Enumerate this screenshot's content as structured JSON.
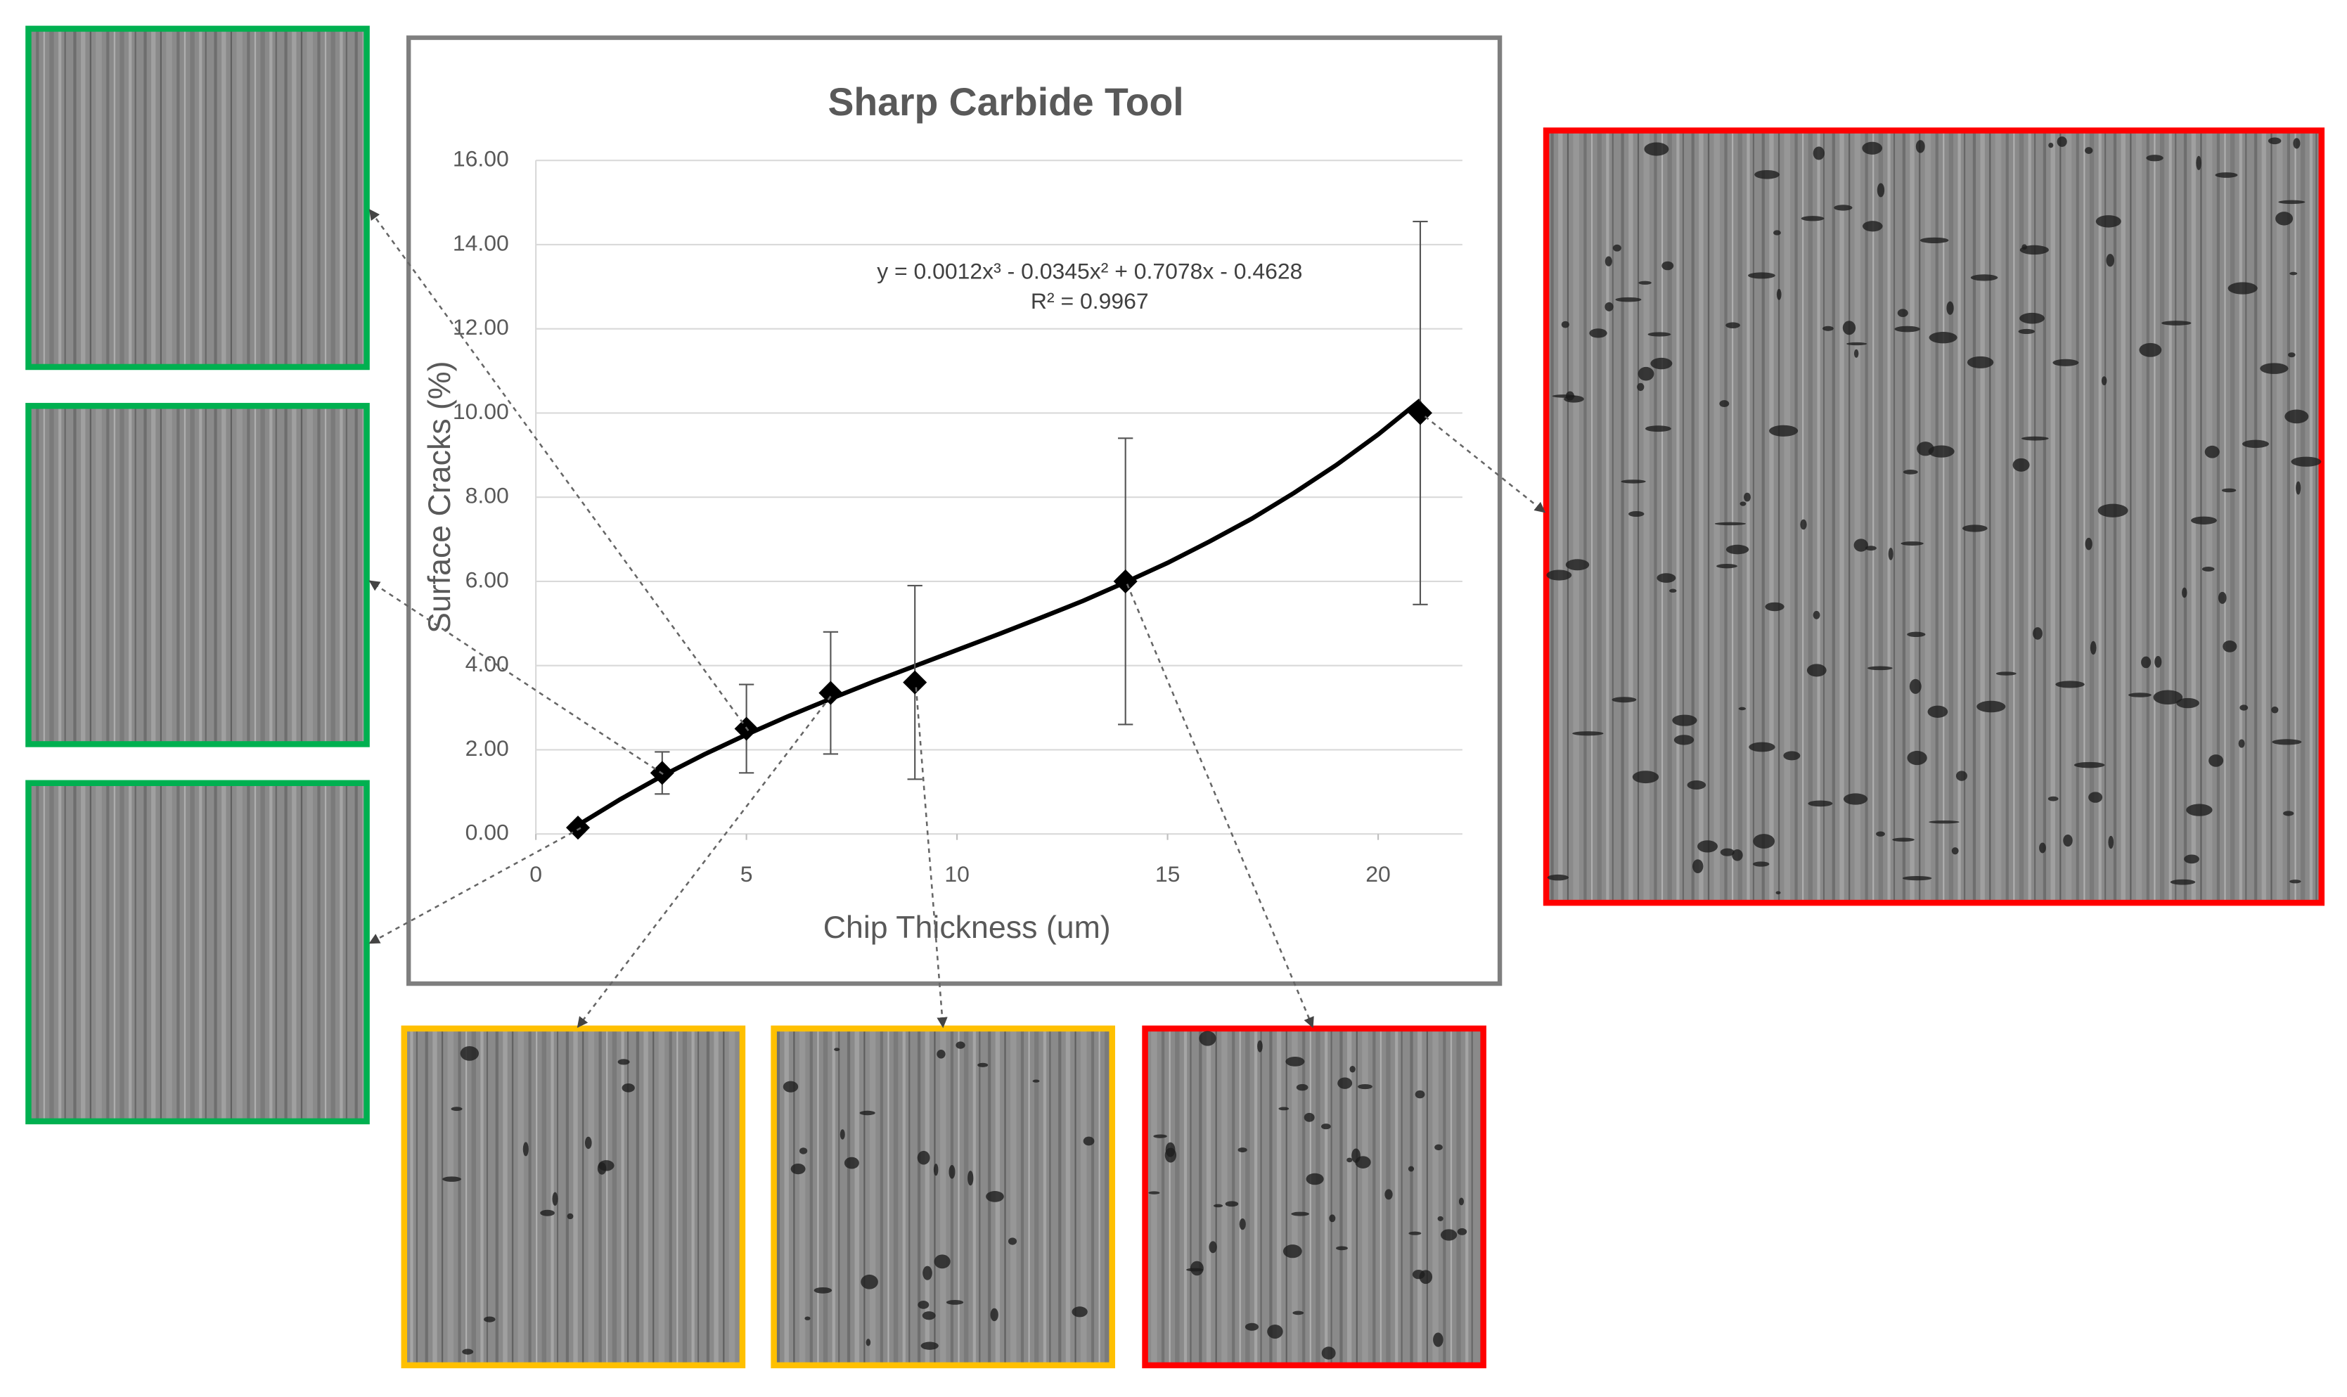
{
  "chart_data": {
    "type": "scatter",
    "title": "Sharp Carbide Tool",
    "x_label": "Chip Thickness (um)",
    "y_label": "Surface Cracks (%)",
    "color": "#000000",
    "x": [
      1,
      3,
      5,
      7,
      9,
      14,
      21
    ],
    "values": [
      0.15,
      1.45,
      2.5,
      3.35,
      3.6,
      6.0,
      10.0
    ],
    "errors": [
      0.1,
      0.5,
      1.05,
      1.45,
      2.3,
      3.4,
      4.55
    ],
    "trend_x": [
      1,
      2,
      3,
      4,
      5,
      6,
      7,
      8,
      9,
      10,
      11,
      12,
      13,
      14,
      15,
      16,
      17,
      18,
      19,
      20,
      21
    ],
    "trend_values": [
      0.21,
      0.82,
      1.38,
      1.89,
      2.36,
      2.8,
      3.21,
      3.61,
      3.99,
      4.37,
      4.75,
      5.14,
      5.54,
      5.98,
      6.44,
      6.95,
      7.49,
      8.1,
      8.76,
      9.49,
      10.3
    ],
    "annotations": [
      "y = 0.0012x³ - 0.0345x² + 0.7078x - 0.4628",
      "R² = 0.9967"
    ],
    "xlim": [
      0,
      22
    ],
    "xticks": [
      0,
      5,
      10,
      15,
      20
    ],
    "ylim": [
      0,
      16
    ],
    "yticks": [
      {
        "value": 0,
        "label": "0.00"
      },
      {
        "value": 2,
        "label": "2.00"
      },
      {
        "value": 4,
        "label": "4.00"
      },
      {
        "value": 6,
        "label": "6.00"
      },
      {
        "value": 8,
        "label": "8.00"
      },
      {
        "value": 10,
        "label": "10.00"
      },
      {
        "value": 12,
        "label": "12.00"
      },
      {
        "value": 14,
        "label": "14.00"
      },
      {
        "value": 16,
        "label": "16.00"
      }
    ],
    "grid": true
  }
}
